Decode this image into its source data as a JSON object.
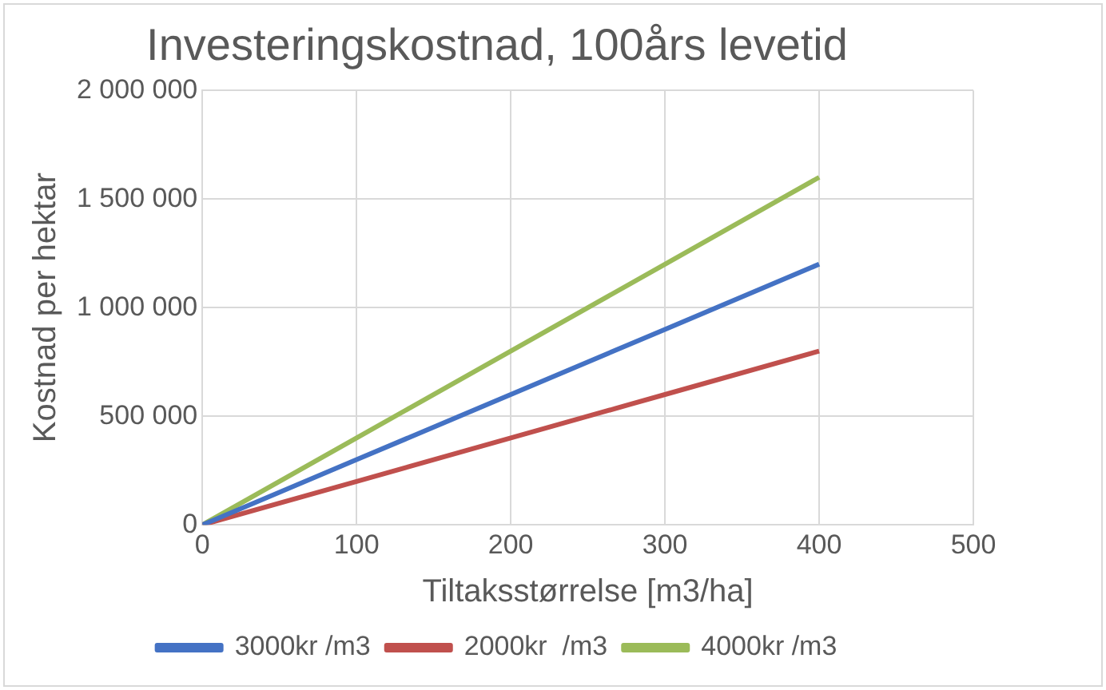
{
  "chart_data": {
    "type": "line",
    "title": "Investeringskostnad, 100års levetid",
    "xlabel": "Tiltaksstørrelse [m3/ha]",
    "ylabel": "Kostnad per hektar",
    "x": [
      0,
      100,
      200,
      300,
      400
    ],
    "series": [
      {
        "name": "3000kr /m3",
        "color": "#4472c4",
        "values": [
          0,
          300000,
          600000,
          900000,
          1200000
        ]
      },
      {
        "name": "2000kr  /m3",
        "color": "#c0504d",
        "values": [
          0,
          200000,
          400000,
          600000,
          800000
        ]
      },
      {
        "name": "4000kr /m3",
        "color": "#9bbb59",
        "values": [
          0,
          400000,
          800000,
          1200000,
          1600000
        ]
      }
    ],
    "xlim": [
      0,
      500
    ],
    "xticks": [
      0,
      100,
      200,
      300,
      400,
      500
    ],
    "ylim": [
      0,
      2000000
    ],
    "yticks": [
      0,
      {
        "value": 500000,
        "label": "500 000"
      },
      {
        "value": 1000000,
        "label": "1 000 000"
      },
      {
        "value": 1500000,
        "label": "1 500 000"
      },
      {
        "value": 2000000,
        "label": "2 000 000"
      }
    ],
    "grid": true,
    "legend": "bottom",
    "marker": "none",
    "line_style": "solid"
  }
}
